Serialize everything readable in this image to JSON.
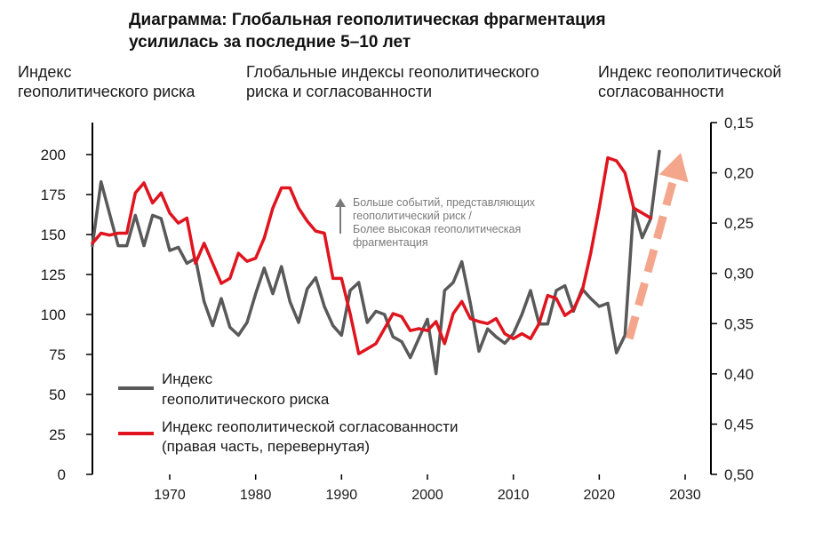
{
  "title_line1": "Диаграмма: Глобальная геополитическая фрагментация",
  "title_line2": "усилилась за последние 5–10 лет",
  "left_axis_title": [
    "Индекс",
    "геополитического риска"
  ],
  "center_title": [
    "Глобальные индексы геополитического",
    "риска и согласованности"
  ],
  "right_axis_title": [
    "Индекс геополитической",
    "согласованности"
  ],
  "annotation": [
    "Больше событий, представляющих",
    "геополитический риск /",
    "Более высокая геополитическая",
    "фрагментация"
  ],
  "legend": [
    {
      "label": [
        "Индекс",
        "геополитического риска"
      ],
      "color": "#595959"
    },
    {
      "label": [
        "Индекс геополитической согласованности",
        "(правая часть, перевернутая)"
      ],
      "color": "#e0141e"
    }
  ],
  "colors": {
    "risk": "#595959",
    "alignment": "#e0141e",
    "trend_arrow": "#f4a68c",
    "annotation": "#7a7a7a"
  },
  "chart_data": {
    "type": "line",
    "x_ticks": [
      1970,
      1980,
      1990,
      2000,
      2010,
      2020,
      2030
    ],
    "xlim": [
      1961,
      2033
    ],
    "left_axis": {
      "ylim": [
        0,
        210
      ],
      "ticks": [
        0,
        25,
        50,
        75,
        100,
        125,
        150,
        175,
        200
      ]
    },
    "right_axis": {
      "ylim": [
        0.5,
        0.15
      ],
      "inverted": true,
      "ticks": [
        "0,15",
        "0,20",
        "0,25",
        "0,30",
        "0,35",
        "0,40",
        "0,45",
        "0,50"
      ],
      "tick_values": [
        0.15,
        0.2,
        0.25,
        0.3,
        0.35,
        0.4,
        0.45,
        0.5
      ]
    },
    "grid": false,
    "series": [
      {
        "name": "Индекс геополитического риска",
        "axis": "left",
        "x": [
          1961,
          1962,
          1963,
          1964,
          1965,
          1966,
          1967,
          1968,
          1969,
          1970,
          1971,
          1972,
          1973,
          1974,
          1975,
          1976,
          1977,
          1978,
          1979,
          1980,
          1981,
          1982,
          1983,
          1984,
          1985,
          1986,
          1987,
          1988,
          1989,
          1990,
          1991,
          1992,
          1993,
          1994,
          1995,
          1996,
          1997,
          1998,
          1999,
          2000,
          2001,
          2002,
          2003,
          2004,
          2005,
          2006,
          2007,
          2008,
          2009,
          2010,
          2011,
          2012,
          2013,
          2014,
          2015,
          2016,
          2017,
          2018,
          2019,
          2020,
          2021,
          2022,
          2023,
          2024,
          2025,
          2026,
          2027
        ],
        "values": [
          143,
          183,
          163,
          143,
          143,
          162,
          143,
          162,
          160,
          140,
          142,
          132,
          135,
          108,
          93,
          110,
          92,
          87,
          95,
          113,
          129,
          113,
          130,
          108,
          95,
          116,
          123,
          105,
          93,
          87,
          115,
          120,
          95,
          102,
          100,
          86,
          83,
          73,
          85,
          97,
          63,
          115,
          120,
          133,
          107,
          77,
          91,
          86,
          82,
          88,
          100,
          115,
          94,
          94,
          115,
          118,
          102,
          116,
          110,
          105,
          107,
          76,
          87,
          167,
          148,
          160,
          202
        ]
      },
      {
        "name": "Индекс геополитической согласованности (правая часть, перевернутая)",
        "axis": "right",
        "x": [
          1961,
          1962,
          1963,
          1964,
          1965,
          1966,
          1967,
          1968,
          1969,
          1970,
          1971,
          1972,
          1973,
          1974,
          1975,
          1976,
          1977,
          1978,
          1979,
          1980,
          1981,
          1982,
          1983,
          1984,
          1985,
          1986,
          1987,
          1988,
          1989,
          1990,
          1991,
          1992,
          1993,
          1994,
          1995,
          1996,
          1997,
          1998,
          1999,
          2000,
          2001,
          2002,
          2003,
          2004,
          2005,
          2006,
          2007,
          2008,
          2009,
          2010,
          2011,
          2012,
          2013,
          2014,
          2015,
          2016,
          2017,
          2018,
          2019,
          2020,
          2021,
          2022,
          2023,
          2024,
          2025,
          2026
        ],
        "values": [
          0.27,
          0.26,
          0.262,
          0.26,
          0.26,
          0.22,
          0.21,
          0.23,
          0.22,
          0.24,
          0.25,
          0.245,
          0.29,
          0.27,
          0.29,
          0.31,
          0.305,
          0.28,
          0.288,
          0.285,
          0.265,
          0.235,
          0.215,
          0.215,
          0.235,
          0.248,
          0.258,
          0.26,
          0.305,
          0.305,
          0.34,
          0.38,
          0.375,
          0.37,
          0.355,
          0.34,
          0.343,
          0.357,
          0.355,
          0.357,
          0.348,
          0.37,
          0.34,
          0.328,
          0.345,
          0.348,
          0.35,
          0.345,
          0.36,
          0.365,
          0.36,
          0.365,
          0.35,
          0.322,
          0.325,
          0.342,
          0.336,
          0.318,
          0.28,
          0.235,
          0.185,
          0.188,
          0.2,
          0.235,
          0.24,
          0.245
        ]
      }
    ],
    "trend_arrow": {
      "from": [
        2023.5,
        0.365
      ],
      "to": [
        2029.5,
        0.18
      ]
    }
  }
}
